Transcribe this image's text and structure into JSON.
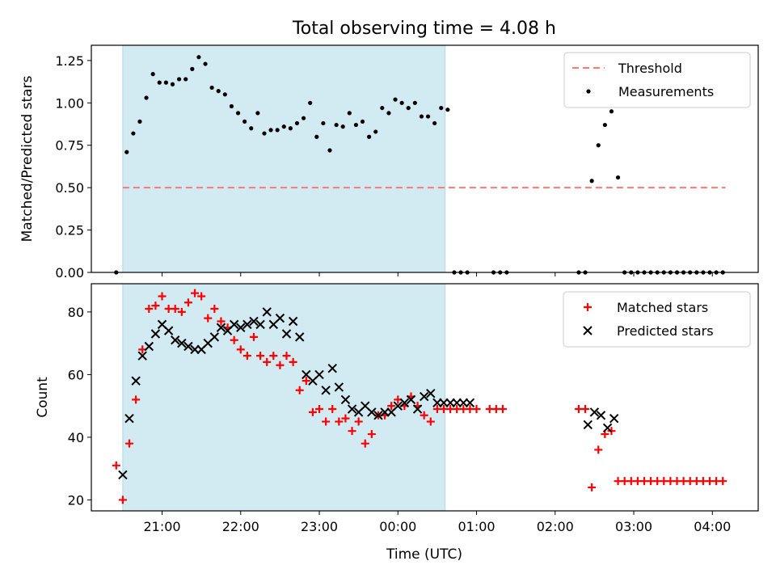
{
  "title": "Total observing time = 4.08 h",
  "colors": {
    "shade": "#add8e6",
    "threshold": "#ff7777",
    "measurement": "#000000",
    "matched": "#ff0000",
    "predicted": "#000000"
  },
  "chart_data": [
    {
      "type": "scatter",
      "name": "ratio-panel",
      "ylabel": "Matched/Predicted stars",
      "xlabel": "",
      "ylim": [
        0,
        1.34
      ],
      "yticks": [
        "0.00",
        "0.25",
        "0.50",
        "0.75",
        "1.00",
        "1.25"
      ],
      "ytick_values": [
        0,
        0.25,
        0.5,
        0.75,
        1.0,
        1.25
      ],
      "shaded_span": [
        "20:30",
        "00:36"
      ],
      "legend": {
        "position": "top-right",
        "entries": [
          "Threshold",
          "Measurements"
        ]
      },
      "series": [
        {
          "name": "Threshold",
          "kind": "dashed-line",
          "x": [
            "20:30",
            "04:10"
          ],
          "y": [
            0.5,
            0.5
          ]
        },
        {
          "name": "Measurements",
          "kind": "dots",
          "x": [
            "20:25",
            "20:33",
            "20:38",
            "20:43",
            "20:48",
            "20:53",
            "20:58",
            "21:03",
            "21:08",
            "21:13",
            "21:18",
            "21:23",
            "21:28",
            "21:33",
            "21:38",
            "21:43",
            "21:48",
            "21:53",
            "21:58",
            "22:03",
            "22:08",
            "22:13",
            "22:18",
            "22:23",
            "22:28",
            "22:33",
            "22:38",
            "22:43",
            "22:48",
            "22:53",
            "22:58",
            "23:03",
            "23:08",
            "23:13",
            "23:18",
            "23:23",
            "23:28",
            "23:33",
            "23:38",
            "23:43",
            "23:48",
            "23:53",
            "23:58",
            "00:03",
            "00:08",
            "00:13",
            "00:18",
            "00:23",
            "00:28",
            "00:33",
            "00:38",
            "00:43",
            "00:48",
            "00:53",
            "01:13",
            "01:18",
            "01:23",
            "02:18",
            "02:23",
            "02:28",
            "02:33",
            "02:38",
            "02:43",
            "02:48",
            "02:53",
            "02:58",
            "03:03",
            "03:08",
            "03:13",
            "03:18",
            "03:23",
            "03:28",
            "03:33",
            "03:38",
            "03:43",
            "03:48",
            "03:53",
            "03:58",
            "04:03",
            "04:08"
          ],
          "y": [
            0.0,
            0.71,
            0.82,
            0.89,
            1.03,
            1.17,
            1.12,
            1.12,
            1.11,
            1.14,
            1.14,
            1.2,
            1.27,
            1.23,
            1.09,
            1.07,
            1.05,
            0.98,
            0.94,
            0.89,
            0.85,
            0.94,
            0.82,
            0.84,
            0.84,
            0.86,
            0.85,
            0.88,
            0.91,
            1.0,
            0.8,
            0.88,
            0.72,
            0.87,
            0.86,
            0.94,
            0.87,
            0.89,
            0.8,
            0.83,
            0.97,
            0.94,
            1.02,
            1.0,
            0.97,
            1.0,
            0.92,
            0.92,
            0.88,
            0.97,
            0.96,
            0.0,
            0.0,
            0.0,
            0.0,
            0.0,
            0.0,
            0.0,
            0.0,
            0.54,
            0.75,
            0.87,
            0.95,
            0.56,
            0.0,
            0.0,
            0.0,
            0.0,
            0.0,
            0.0,
            0.0,
            0.0,
            0.0,
            0.0,
            0.0,
            0.0,
            0.0,
            0.0,
            0.0,
            0.0
          ]
        }
      ]
    },
    {
      "type": "scatter",
      "name": "count-panel",
      "xlabel": "Time (UTC)",
      "ylabel": "Count",
      "ylim": [
        16.5,
        89
      ],
      "yticks": [
        "20",
        "40",
        "60",
        "80"
      ],
      "ytick_values": [
        20,
        40,
        60,
        80
      ],
      "xlim": [
        "20:06",
        "04:35"
      ],
      "xticks": [
        "21:00",
        "22:00",
        "23:00",
        "00:00",
        "01:00",
        "02:00",
        "03:00",
        "04:00"
      ],
      "shaded_span": [
        "20:30",
        "00:36"
      ],
      "legend": {
        "position": "top-right",
        "entries": [
          "Matched stars",
          "Predicted stars"
        ]
      },
      "series": [
        {
          "name": "Matched stars",
          "marker": "plus",
          "x": [
            "20:25",
            "20:30",
            "20:35",
            "20:40",
            "20:45",
            "20:50",
            "20:55",
            "21:00",
            "21:05",
            "21:10",
            "21:15",
            "21:20",
            "21:25",
            "21:30",
            "21:35",
            "21:40",
            "21:45",
            "21:50",
            "21:55",
            "22:00",
            "22:05",
            "22:10",
            "22:15",
            "22:20",
            "22:25",
            "22:30",
            "22:35",
            "22:40",
            "22:45",
            "22:50",
            "22:55",
            "23:00",
            "23:05",
            "23:10",
            "23:15",
            "23:20",
            "23:25",
            "23:30",
            "23:35",
            "23:40",
            "23:45",
            "23:50",
            "23:55",
            "00:00",
            "00:05",
            "00:10",
            "00:15",
            "00:20",
            "00:25",
            "00:30",
            "00:35",
            "00:40",
            "00:45",
            "00:50",
            "00:55",
            "01:00",
            "01:10",
            "01:15",
            "01:20",
            "02:18",
            "02:23",
            "02:28",
            "02:33",
            "02:38",
            "02:43",
            "02:48",
            "02:53",
            "02:58",
            "03:03",
            "03:08",
            "03:13",
            "03:18",
            "03:23",
            "03:28",
            "03:33",
            "03:38",
            "03:43",
            "03:48",
            "03:53",
            "03:58",
            "04:03",
            "04:08"
          ],
          "y": [
            31,
            20,
            38,
            52,
            68,
            81,
            82,
            85,
            81,
            81,
            80,
            83,
            86,
            85,
            78,
            81,
            77,
            75,
            71,
            68,
            66,
            72,
            66,
            64,
            66,
            63,
            66,
            64,
            55,
            58,
            48,
            49,
            45,
            49,
            45,
            46,
            42,
            45,
            38,
            41,
            47,
            47,
            50,
            52,
            50,
            53,
            50,
            47,
            45,
            49,
            49,
            49,
            49,
            49,
            49,
            49,
            49,
            49,
            49,
            49,
            49,
            24,
            36,
            41,
            42,
            26,
            26,
            26,
            26,
            26,
            26,
            26,
            26,
            26,
            26,
            26,
            26,
            26,
            26,
            26,
            26,
            26
          ]
        },
        {
          "name": "Predicted stars",
          "marker": "x",
          "x": [
            "20:30",
            "20:35",
            "20:40",
            "20:45",
            "20:50",
            "20:55",
            "21:00",
            "21:05",
            "21:10",
            "21:15",
            "21:20",
            "21:25",
            "21:30",
            "21:35",
            "21:40",
            "21:45",
            "21:50",
            "21:55",
            "22:00",
            "22:05",
            "22:10",
            "22:15",
            "22:20",
            "22:25",
            "22:30",
            "22:35",
            "22:40",
            "22:45",
            "22:50",
            "22:55",
            "23:00",
            "23:05",
            "23:10",
            "23:15",
            "23:20",
            "23:25",
            "23:30",
            "23:35",
            "23:40",
            "23:45",
            "23:50",
            "23:55",
            "00:00",
            "00:05",
            "00:10",
            "00:15",
            "00:20",
            "00:25",
            "00:30",
            "00:35",
            "00:40",
            "00:45",
            "00:50",
            "00:55",
            "02:25",
            "02:30",
            "02:35",
            "02:40",
            "02:45"
          ],
          "y": [
            28,
            46,
            58,
            66,
            69,
            73,
            76,
            74,
            71,
            70,
            69,
            68,
            68,
            70,
            72,
            75,
            74,
            76,
            75,
            76,
            77,
            76,
            80,
            76,
            78,
            73,
            77,
            72,
            60,
            58,
            60,
            55,
            62,
            56,
            52,
            49,
            48,
            50,
            48,
            47,
            48,
            48,
            50,
            51,
            52,
            49,
            53,
            54,
            51,
            51,
            51,
            51,
            51,
            51,
            44,
            48,
            47,
            43,
            46
          ]
        }
      ]
    }
  ]
}
